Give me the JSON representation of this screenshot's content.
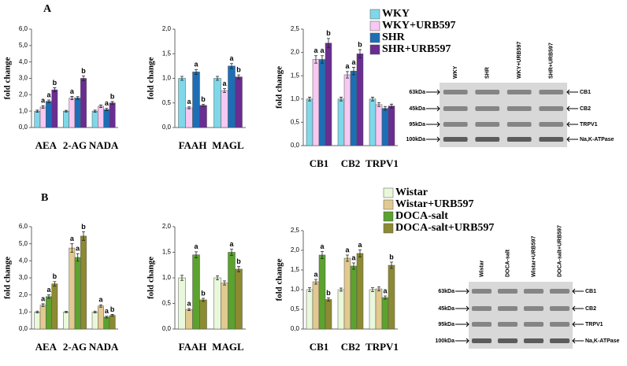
{
  "panel_labels": [
    "A",
    "B"
  ],
  "chart_data": [
    {
      "type": "bar",
      "ylabel": "fold change",
      "categories": [
        "AEA",
        "2-AG",
        "NADA"
      ],
      "ylim": [
        0,
        6
      ],
      "yticks": [
        {
          "value": 0,
          "label": "0,0"
        },
        {
          "value": 1,
          "label": "1,0"
        },
        {
          "value": 2,
          "label": "2,0"
        },
        {
          "value": 3,
          "label": "3,0"
        },
        {
          "value": 4,
          "label": "4,0"
        },
        {
          "value": 5,
          "label": "5,0"
        },
        {
          "value": 6,
          "label": "6,0"
        }
      ],
      "series": [
        {
          "name": "WKY",
          "color": "#7fd8ea",
          "values": [
            1.0,
            1.0,
            1.0
          ],
          "errors": [
            0.06,
            0.05,
            0.06
          ],
          "letters": [
            null,
            null,
            null
          ]
        },
        {
          "name": "WKY+URB597",
          "color": "#f6c8f2",
          "values": [
            1.25,
            1.8,
            1.3
          ],
          "errors": [
            0.08,
            0.1,
            0.08
          ],
          "letters": [
            "a",
            "a",
            null
          ]
        },
        {
          "name": "SHR",
          "color": "#1c6fb6",
          "values": [
            1.6,
            1.8,
            1.1
          ],
          "errors": [
            0.08,
            0.08,
            0.07
          ],
          "letters": [
            "a",
            null,
            "a"
          ]
        },
        {
          "name": "SHR+URB597",
          "color": "#6a2d92",
          "values": [
            2.3,
            3.0,
            1.5
          ],
          "errors": [
            0.12,
            0.15,
            0.08
          ],
          "letters": [
            "b",
            "b",
            "b"
          ]
        }
      ]
    },
    {
      "type": "bar",
      "ylabel": "fold change",
      "categories": [
        "FAAH",
        "MAGL"
      ],
      "ylim": [
        0,
        2
      ],
      "yticks": [
        {
          "value": 0,
          "label": "0,0"
        },
        {
          "value": 0.5,
          "label": "0,5"
        },
        {
          "value": 1,
          "label": "1,0"
        },
        {
          "value": 1.5,
          "label": "1,5"
        },
        {
          "value": 2,
          "label": "2,0"
        }
      ],
      "series": [
        {
          "name": "WKY",
          "color": "#7fd8ea",
          "values": [
            1.0,
            1.0
          ],
          "errors": [
            0.04,
            0.04
          ],
          "letters": [
            null,
            null
          ]
        },
        {
          "name": "WKY+URB597",
          "color": "#f6c8f2",
          "values": [
            0.4,
            0.75
          ],
          "errors": [
            0.02,
            0.04
          ],
          "letters": [
            "a",
            "a"
          ]
        },
        {
          "name": "SHR",
          "color": "#1c6fb6",
          "values": [
            1.13,
            1.25
          ],
          "errors": [
            0.05,
            0.05
          ],
          "letters": [
            "a",
            "a"
          ]
        },
        {
          "name": "SHR+URB597",
          "color": "#6a2d92",
          "values": [
            0.45,
            1.03
          ],
          "errors": [
            0.02,
            0.04
          ],
          "letters": [
            "b",
            "b"
          ]
        }
      ]
    },
    {
      "type": "bar",
      "ylabel": "fold change",
      "legend": true,
      "categories": [
        "CB1",
        "CB2",
        "TRPV1"
      ],
      "ylim": [
        0,
        2.5
      ],
      "yticks": [
        {
          "value": 0,
          "label": "0,0"
        },
        {
          "value": 0.5,
          "label": "0,5"
        },
        {
          "value": 1,
          "label": "1,0"
        },
        {
          "value": 1.5,
          "label": "1,5"
        },
        {
          "value": 2,
          "label": "2,0"
        },
        {
          "value": 2.5,
          "label": "2,5"
        }
      ],
      "series": [
        {
          "name": "WKY",
          "color": "#7fd8ea",
          "values": [
            1.0,
            1.0,
            1.0
          ],
          "errors": [
            0.04,
            0.04,
            0.04
          ],
          "letters": [
            null,
            null,
            null
          ]
        },
        {
          "name": "WKY+URB597",
          "color": "#f6c8f2",
          "values": [
            1.85,
            1.52,
            0.88
          ],
          "errors": [
            0.08,
            0.07,
            0.04
          ],
          "letters": [
            "a",
            "a",
            null
          ]
        },
        {
          "name": "SHR",
          "color": "#1c6fb6",
          "values": [
            1.85,
            1.6,
            0.8
          ],
          "errors": [
            0.08,
            0.08,
            0.04
          ],
          "letters": [
            "a",
            "a",
            null
          ]
        },
        {
          "name": "SHR+URB597",
          "color": "#6a2d92",
          "values": [
            2.2,
            1.97,
            0.85
          ],
          "errors": [
            0.1,
            0.09,
            0.04
          ],
          "letters": [
            "b",
            "b",
            null
          ]
        }
      ]
    },
    {
      "type": "bar",
      "ylabel": "fold change",
      "categories": [
        "AEA",
        "2-AG",
        "NADA"
      ],
      "ylim": [
        0,
        6
      ],
      "yticks": [
        {
          "value": 0,
          "label": "0,0"
        },
        {
          "value": 1,
          "label": "1,0"
        },
        {
          "value": 2,
          "label": "2,0"
        },
        {
          "value": 3,
          "label": "3,0"
        },
        {
          "value": 4,
          "label": "4,0"
        },
        {
          "value": 5,
          "label": "5,0"
        },
        {
          "value": 6,
          "label": "6,0"
        }
      ],
      "series": [
        {
          "name": "Wistar",
          "color": "#e9f8da",
          "values": [
            1.0,
            1.0,
            1.0
          ],
          "errors": [
            0.05,
            0.04,
            0.05
          ],
          "letters": [
            null,
            null,
            null
          ]
        },
        {
          "name": "Wistar+URB597",
          "color": "#e2c98f",
          "values": [
            1.4,
            4.75,
            1.35
          ],
          "errors": [
            0.08,
            0.25,
            0.07
          ],
          "letters": [
            "a",
            "a",
            "a"
          ]
        },
        {
          "name": "DOCA-salt",
          "color": "#5ba22e",
          "values": [
            1.9,
            4.2,
            0.7
          ],
          "errors": [
            0.1,
            0.22,
            0.05
          ],
          "letters": [
            "a",
            "a",
            "a"
          ]
        },
        {
          "name": "DOCA-salt+URB597",
          "color": "#8c8a32",
          "values": [
            2.65,
            5.45,
            0.8
          ],
          "errors": [
            0.13,
            0.25,
            0.05
          ],
          "letters": [
            "b",
            "b",
            "b"
          ]
        }
      ]
    },
    {
      "type": "bar",
      "ylabel": "fold change",
      "categories": [
        "FAAH",
        "MAGL"
      ],
      "ylim": [
        0,
        2
      ],
      "yticks": [
        {
          "value": 0,
          "label": "0,0"
        },
        {
          "value": 0.5,
          "label": "0,5"
        },
        {
          "value": 1,
          "label": "1,0"
        },
        {
          "value": 1.5,
          "label": "1,5"
        },
        {
          "value": 2,
          "label": "2,0"
        }
      ],
      "series": [
        {
          "name": "Wistar",
          "color": "#e9f8da",
          "values": [
            1.0,
            1.0
          ],
          "errors": [
            0.05,
            0.04
          ],
          "letters": [
            null,
            null
          ]
        },
        {
          "name": "Wistar+URB597",
          "color": "#e2c98f",
          "values": [
            0.38,
            0.9
          ],
          "errors": [
            0.02,
            0.04
          ],
          "letters": [
            "a",
            null
          ]
        },
        {
          "name": "DOCA-salt",
          "color": "#5ba22e",
          "values": [
            1.45,
            1.5
          ],
          "errors": [
            0.06,
            0.06
          ],
          "letters": [
            "a",
            "a"
          ]
        },
        {
          "name": "DOCA-salt+URB597",
          "color": "#8c8a32",
          "values": [
            0.57,
            1.17
          ],
          "errors": [
            0.03,
            0.05
          ],
          "letters": [
            "b",
            "b"
          ]
        }
      ]
    },
    {
      "type": "bar",
      "ylabel": "fold change",
      "legend": true,
      "categories": [
        "CB1",
        "CB2",
        "TRPV1"
      ],
      "ylim": [
        0,
        2.5
      ],
      "yticks": [
        {
          "value": 0,
          "label": "0,0"
        },
        {
          "value": 0.5,
          "label": "0,5"
        },
        {
          "value": 1,
          "label": "1,0"
        },
        {
          "value": 1.5,
          "label": "1,5"
        },
        {
          "value": 2,
          "label": "2,0"
        },
        {
          "value": 2.5,
          "label": "2,5"
        }
      ],
      "series": [
        {
          "name": "Wistar",
          "color": "#e9f8da",
          "values": [
            1.0,
            1.0,
            1.0
          ],
          "errors": [
            0.05,
            0.04,
            0.05
          ],
          "letters": [
            null,
            null,
            null
          ]
        },
        {
          "name": "Wistar+URB597",
          "color": "#e2c98f",
          "values": [
            1.2,
            1.8,
            1.02
          ],
          "errors": [
            0.06,
            0.08,
            0.05
          ],
          "letters": [
            "a",
            "a",
            null
          ]
        },
        {
          "name": "DOCA-salt",
          "color": "#5ba22e",
          "values": [
            1.88,
            1.6,
            0.8
          ],
          "errors": [
            0.09,
            0.08,
            0.04
          ],
          "letters": [
            "a",
            "a",
            "a"
          ]
        },
        {
          "name": "DOCA-salt+URB597",
          "color": "#8c8a32",
          "values": [
            0.75,
            1.92,
            1.62
          ],
          "errors": [
            0.04,
            0.09,
            0.08
          ],
          "letters": [
            "b",
            "a",
            "b"
          ]
        }
      ]
    }
  ],
  "blots": [
    {
      "lanes": [
        "WKY",
        "SHR",
        "WKY+URB597",
        "SHR+URB597"
      ],
      "sizes": [
        "63kDa",
        "45kDa",
        "95kDa",
        "100kDa"
      ],
      "proteins": [
        "CB1",
        "CB2",
        "TRPV1",
        "Na,K-ATPase"
      ]
    },
    {
      "lanes": [
        "Wistar",
        "DOCA-salt",
        "Wistar+URB597",
        "DOCA-salt+URB597"
      ],
      "sizes": [
        "63kDa",
        "45kDa",
        "95kDa",
        "100kDa"
      ],
      "proteins": [
        "CB1",
        "CB2",
        "TRPV1",
        "Na,K-ATPase"
      ]
    }
  ]
}
